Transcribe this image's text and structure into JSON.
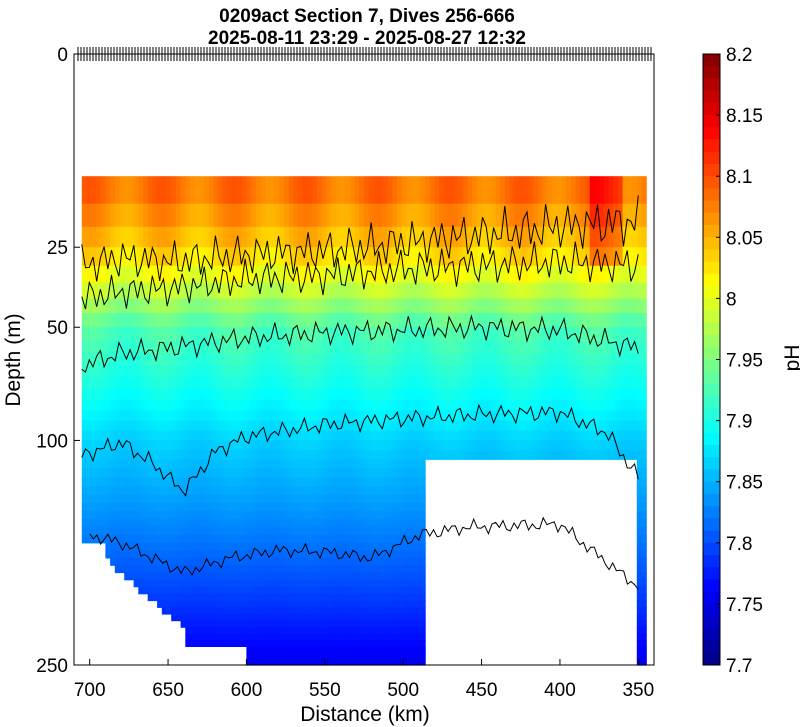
{
  "chart_data": {
    "type": "heatmap",
    "title": "0209act Section 7, Dives 256-666",
    "subtitle": "2025-08-11 23:29 - 2025-08-27 12:32",
    "xlabel": "Distance (km)",
    "ylabel": "Depth (m)",
    "colorbar_label": "pH",
    "xlim": [
      710,
      340
    ],
    "x_ticks": [
      700,
      650,
      600,
      550,
      500,
      450,
      400,
      350
    ],
    "ylim": [
      0,
      250
    ],
    "y_scale": "sqrt",
    "y_ticks": [
      0,
      25,
      50,
      100,
      250
    ],
    "colorbar_range": [
      7.7,
      8.2
    ],
    "colorbar_ticks": [
      "8.2",
      "8.15",
      "8.1",
      "8.05",
      "8",
      "7.95",
      "7.9",
      "7.85",
      "7.8",
      "7.75",
      "7.7"
    ],
    "colormap": "jet",
    "grid": false,
    "data_top_depth": 10,
    "contours": [
      {
        "depth_points": [
          [
            705,
            30
          ],
          [
            680,
            28
          ],
          [
            650,
            29
          ],
          [
            600,
            27
          ],
          [
            550,
            26
          ],
          [
            500,
            24
          ],
          [
            450,
            22
          ],
          [
            400,
            20
          ],
          [
            350,
            19
          ]
        ]
      },
      {
        "depth_points": [
          [
            705,
            40
          ],
          [
            680,
            38
          ],
          [
            650,
            37
          ],
          [
            600,
            34
          ],
          [
            550,
            33
          ],
          [
            500,
            31
          ],
          [
            450,
            30
          ],
          [
            400,
            29
          ],
          [
            350,
            30
          ]
        ]
      },
      {
        "depth_points": [
          [
            705,
            65
          ],
          [
            680,
            60
          ],
          [
            650,
            58
          ],
          [
            600,
            54
          ],
          [
            550,
            52
          ],
          [
            500,
            51
          ],
          [
            450,
            50
          ],
          [
            400,
            51
          ],
          [
            350,
            58
          ]
        ]
      },
      {
        "depth_points": [
          [
            705,
            108
          ],
          [
            680,
            101
          ],
          [
            660,
            112
          ],
          [
            640,
            128
          ],
          [
            620,
            106
          ],
          [
            600,
            98
          ],
          [
            550,
            92
          ],
          [
            500,
            89
          ],
          [
            450,
            87
          ],
          [
            400,
            86
          ],
          [
            370,
            96
          ],
          [
            350,
            120
          ]
        ]
      },
      {
        "depth_points": [
          [
            700,
            155
          ],
          [
            680,
            160
          ],
          [
            640,
            180
          ],
          [
            610,
            170
          ],
          [
            580,
            165
          ],
          [
            550,
            166
          ],
          [
            520,
            170
          ],
          [
            490,
            155
          ],
          [
            460,
            150
          ],
          [
            400,
            148
          ],
          [
            350,
            190
          ]
        ]
      }
    ],
    "white_gap_regions": [
      {
        "x_range": [
          485,
          352
        ],
        "depth_top": 108,
        "depth_bottom": 250
      }
    ]
  }
}
